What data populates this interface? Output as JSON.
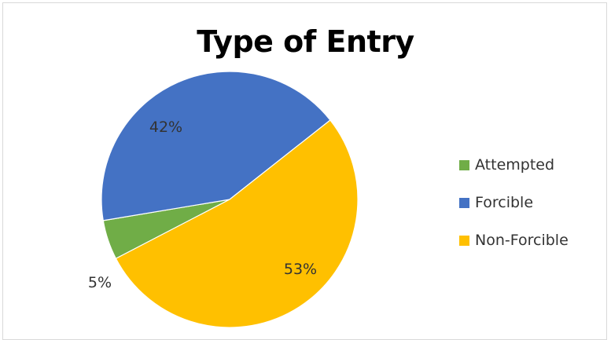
{
  "chart_data": {
    "type": "pie",
    "title": "Type of Entry",
    "categories": [
      "Attempted",
      "Forcible",
      "Non-Forcible"
    ],
    "values": [
      5,
      42,
      53
    ],
    "labels": [
      "5%",
      "42%",
      "53%"
    ],
    "colors": [
      "#70ad47",
      "#4472c4",
      "#ffc000"
    ],
    "legend_position": "right"
  }
}
